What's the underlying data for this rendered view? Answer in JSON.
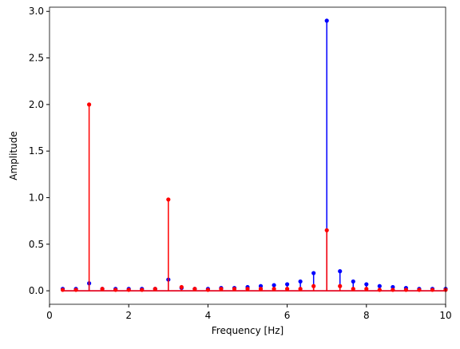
{
  "chart_data": {
    "type": "stem",
    "x_label": "Frequency [Hz]",
    "y_label": "Amplitude",
    "x": [
      0.333,
      0.667,
      1,
      1.333,
      1.667,
      2,
      2.333,
      2.667,
      3,
      3.333,
      3.667,
      4,
      4.333,
      4.667,
      5,
      5.333,
      5.667,
      6,
      6.333,
      6.667,
      7,
      7.333,
      7.667,
      8,
      8.333,
      8.667,
      9,
      9.333,
      9.667,
      10
    ],
    "series": [
      {
        "color": "#0000ff",
        "values": [
          0.02,
          0.02,
          0.08,
          0.02,
          0.02,
          0.02,
          0.02,
          0.02,
          0.12,
          0.03,
          0.02,
          0.02,
          0.03,
          0.03,
          0.04,
          0.05,
          0.06,
          0.07,
          0.1,
          0.19,
          2.9,
          0.21,
          0.1,
          0.07,
          0.05,
          0.04,
          0.03,
          0.02,
          0.02,
          0.02
        ]
      },
      {
        "color": "#ff0000",
        "values": [
          0.01,
          0.01,
          2.0,
          0.02,
          0.01,
          0.01,
          0.01,
          0.02,
          0.98,
          0.04,
          0.02,
          0.01,
          0.02,
          0.02,
          0.02,
          0.02,
          0.02,
          0.02,
          0.02,
          0.05,
          0.65,
          0.05,
          0.02,
          0.02,
          0.01,
          0.01,
          0.01,
          0.01,
          0.01,
          0.01
        ]
      }
    ],
    "xlim": [
      0,
      10
    ],
    "xticks": [
      0,
      2,
      4,
      6,
      8,
      10
    ],
    "ylim": [
      -0.145,
      3.045
    ],
    "yticks": [
      {
        "value": 0,
        "label": "0.0"
      },
      {
        "value": 0.5,
        "label": "0.5"
      },
      {
        "value": 1,
        "label": "1.0"
      },
      {
        "value": 1.5,
        "label": "1.5"
      },
      {
        "value": 2,
        "label": "2.0"
      },
      {
        "value": 2.5,
        "label": "2.5"
      },
      {
        "value": 3,
        "label": "3.0"
      }
    ],
    "grid": false
  }
}
